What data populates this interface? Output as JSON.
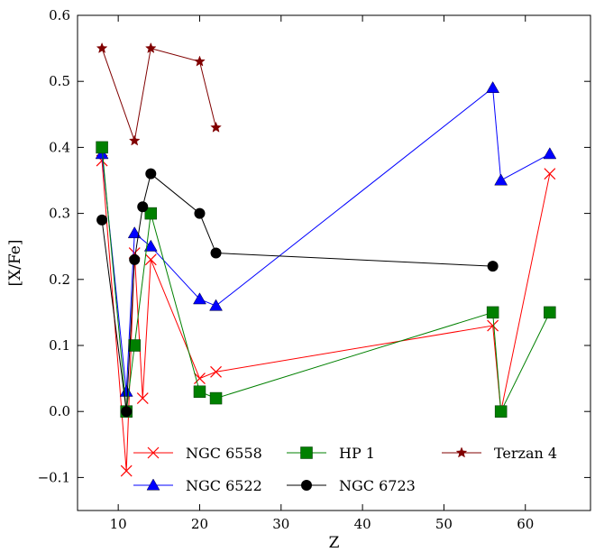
{
  "chart_data": {
    "type": "line",
    "xlabel": "Z",
    "ylabel": "[X/Fe]",
    "xlim": [
      5,
      68
    ],
    "ylim": [
      -0.15,
      0.6
    ],
    "xticks": [
      10,
      20,
      30,
      40,
      50,
      60
    ],
    "yticks": [
      -0.1,
      0.0,
      0.1,
      0.2,
      0.3,
      0.4,
      0.5,
      0.6
    ],
    "ytick_labels": [
      "−0.1",
      "0.0",
      "0.1",
      "0.2",
      "0.3",
      "0.4",
      "0.5",
      "0.6"
    ],
    "grid": false,
    "legend_placement": "bottom",
    "series": [
      {
        "name": "NGC 6558",
        "marker": "x",
        "color": "#ff0000",
        "x": [
          8,
          11,
          12,
          13,
          14,
          20,
          22,
          56,
          57,
          63
        ],
        "y": [
          0.38,
          -0.09,
          0.24,
          0.02,
          0.23,
          0.05,
          0.06,
          0.13,
          0.0,
          0.36
        ]
      },
      {
        "name": "NGC 6522",
        "marker": "triangle",
        "color": "#0000ff",
        "x": [
          8,
          11,
          12,
          14,
          20,
          22,
          56,
          57,
          63
        ],
        "y": [
          0.39,
          0.03,
          0.27,
          0.25,
          0.17,
          0.16,
          0.49,
          0.35,
          0.39
        ]
      },
      {
        "name": "HP 1",
        "marker": "square",
        "color": "#008000",
        "x": [
          8,
          11,
          12,
          14,
          20,
          22,
          56,
          57,
          63
        ],
        "y": [
          0.4,
          0.0,
          0.1,
          0.3,
          0.03,
          0.02,
          0.15,
          0.0,
          0.15
        ]
      },
      {
        "name": "NGC 6723",
        "marker": "circle",
        "color": "#000000",
        "x": [
          8,
          11,
          12,
          13,
          14,
          20,
          22,
          56
        ],
        "y": [
          0.29,
          0.0,
          0.23,
          0.31,
          0.36,
          0.3,
          0.24,
          0.22
        ]
      },
      {
        "name": "Terzan 4",
        "marker": "star",
        "color": "#800000",
        "x": [
          8,
          12,
          14,
          20,
          22
        ],
        "y": [
          0.55,
          0.41,
          0.55,
          0.53,
          0.43
        ]
      }
    ]
  }
}
